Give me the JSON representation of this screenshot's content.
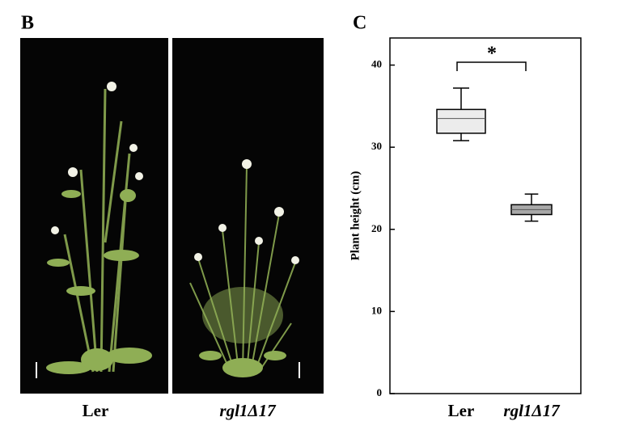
{
  "photo_panel": {
    "label": "B",
    "captions": [
      "Ler",
      "rgl1Δ17"
    ]
  },
  "chart_data": {
    "type": "box",
    "panel_label": "C",
    "y_label": "Plant height (cm)",
    "categories": [
      "Ler",
      "rgl1Δ17"
    ],
    "boxes": [
      {
        "min": 30.8,
        "q1": 31.7,
        "median": 33.5,
        "q3": 34.6,
        "max": 37.2,
        "color": "#ececec"
      },
      {
        "min": 21.0,
        "q1": 21.8,
        "median": 22.4,
        "q3": 23.0,
        "max": 24.3,
        "color": "#a8a8a8"
      }
    ],
    "annotation": "*",
    "ylim": [
      0,
      43.3
    ],
    "yticks": [
      0,
      10,
      20,
      30,
      40
    ]
  }
}
